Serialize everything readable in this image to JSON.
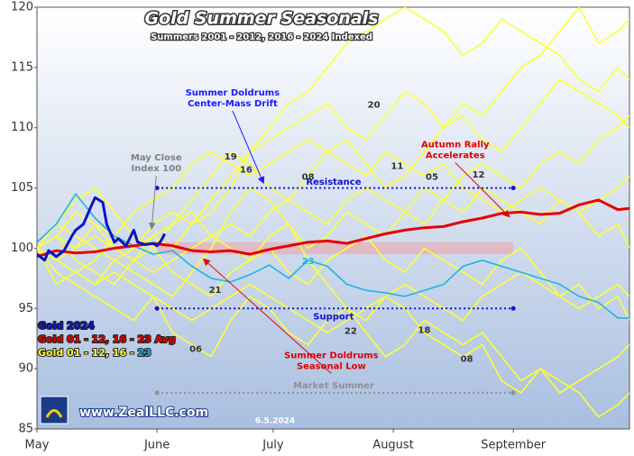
{
  "chart_data": {
    "type": "line",
    "title": "Gold Summer Seasonals",
    "subtitle": "Summers 2001 - 2012, 2016 - 2024 Indexed",
    "xlim": [
      0,
      153
    ],
    "ylim": [
      85,
      120
    ],
    "yticks": [
      85,
      90,
      95,
      100,
      105,
      110,
      115,
      120
    ],
    "xticks": [
      {
        "value": 0,
        "label": "May"
      },
      {
        "value": 31,
        "label": "June"
      },
      {
        "value": 61,
        "label": "July"
      },
      {
        "value": 92,
        "label": "August"
      },
      {
        "value": 123,
        "label": "September"
      }
    ],
    "x": [
      0,
      5,
      10,
      15,
      20,
      25,
      30,
      35,
      40,
      45,
      50,
      55,
      60,
      65,
      70,
      75,
      80,
      85,
      90,
      95,
      100,
      105,
      110,
      115,
      120,
      125,
      130,
      135,
      140,
      145,
      150,
      153
    ],
    "series": [
      {
        "color": "#ffff33",
        "values": [
          100,
          99,
          98,
          97,
          99,
          100,
          101,
          100,
          102,
          103,
          105,
          108,
          110,
          112,
          113,
          115,
          117,
          118,
          119,
          120,
          119,
          118,
          116,
          117,
          119,
          118,
          117,
          116,
          114,
          113,
          115,
          114
        ]
      },
      {
        "color": "#ffff33",
        "values": [
          100,
          102,
          101,
          100,
          99,
          98,
          97,
          96,
          98,
          100,
          103,
          105,
          104,
          102,
          99,
          97,
          95,
          94,
          96,
          95,
          93,
          92,
          91,
          92,
          89,
          88,
          90,
          88,
          89,
          90,
          91,
          92
        ]
      },
      {
        "color": "#ffff33",
        "values": [
          100,
          101,
          103,
          102,
          100,
          99,
          101,
          102,
          104,
          106,
          108,
          107,
          105,
          104,
          106,
          108,
          109,
          107,
          105,
          106,
          108,
          110,
          112,
          111,
          113,
          115,
          116,
          118,
          120,
          117,
          118,
          119
        ]
      },
      {
        "color": "#ffff33",
        "values": [
          100,
          98,
          97,
          96,
          95,
          94,
          96,
          93,
          92,
          91,
          94,
          96,
          95,
          93,
          92,
          94,
          95,
          93,
          91,
          92,
          94,
          93,
          92,
          93,
          91,
          89,
          90,
          89,
          88,
          86,
          87,
          88
        ]
      },
      {
        "color": "#ffff33",
        "values": [
          100,
          101,
          100,
          102,
          101,
          103,
          104,
          105,
          107,
          108,
          107,
          106,
          107,
          108,
          109,
          108,
          107,
          106,
          108,
          107,
          106,
          107,
          105,
          104,
          103,
          104,
          105,
          104,
          103,
          104,
          105,
          106
        ]
      },
      {
        "color": "#ffff33",
        "values": [
          100,
          99,
          100,
          101,
          100,
          99,
          98,
          99,
          100,
          101,
          102,
          101,
          103,
          104,
          103,
          102,
          104,
          105,
          104,
          103,
          105,
          104,
          106,
          107,
          106,
          105,
          107,
          108,
          107,
          109,
          110,
          111
        ]
      },
      {
        "color": "#ffff33",
        "values": [
          100,
          99,
          98,
          97,
          98,
          97,
          96,
          95,
          94,
          95,
          96,
          97,
          96,
          95,
          94,
          93,
          94,
          95,
          96,
          97,
          96,
          95,
          94,
          96,
          97,
          98,
          97,
          96,
          95,
          96,
          97,
          96
        ]
      },
      {
        "color": "#ffff33",
        "values": [
          100,
          102,
          104,
          105,
          103,
          101,
          100,
          102,
          103,
          101,
          100,
          99,
          100,
          98,
          97,
          99,
          100,
          101,
          99,
          98,
          100,
          99,
          98,
          97,
          99,
          100,
          98,
          96,
          97,
          95,
          96,
          94
        ]
      },
      {
        "color": "#ffff33",
        "values": [
          100,
          101,
          99,
          98,
          97,
          99,
          100,
          98,
          97,
          96,
          98,
          99,
          101,
          102,
          100,
          101,
          103,
          102,
          101,
          103,
          102,
          104,
          103,
          105,
          104,
          103,
          102,
          104,
          103,
          101,
          102,
          100
        ]
      },
      {
        "color": "#ffff33",
        "values": [
          100,
          97,
          98,
          99,
          101,
          100,
          102,
          103,
          102,
          104,
          106,
          108,
          109,
          110,
          111,
          112,
          110,
          109,
          111,
          113,
          112,
          110,
          111,
          109,
          108,
          110,
          112,
          114,
          113,
          112,
          111,
          110
        ]
      },
      {
        "color": "#1eb4e6",
        "values": [
          100.5,
          102,
          104.5,
          102.5,
          101,
          100.2,
          99.5,
          99.8,
          98.5,
          97.5,
          97.2,
          97.8,
          98.6,
          97.5,
          99,
          98.5,
          97,
          96.5,
          96.3,
          96,
          96.5,
          97,
          98.5,
          99,
          98.5,
          98,
          97.5,
          97,
          96,
          95.5,
          94.2,
          94.2
        ]
      },
      {
        "color": "#e60000",
        "width": 3,
        "values": [
          99.3,
          99.8,
          99.6,
          99.7,
          100.0,
          100.2,
          100.4,
          100.2,
          99.8,
          99.7,
          99.8,
          99.5,
          99.9,
          100.2,
          100.5,
          100.6,
          100.4,
          100.8,
          101.2,
          101.5,
          101.7,
          101.8,
          102.2,
          102.5,
          102.9,
          103.0,
          102.8,
          102.9,
          103.6,
          104,
          103.2,
          103.3
        ]
      },
      {
        "color": "#0a14c8",
        "width": 3,
        "x": [
          0,
          2,
          3,
          5,
          7,
          9,
          10,
          12,
          14,
          15,
          17,
          18,
          20,
          21,
          23,
          25,
          26,
          28,
          30,
          31,
          32,
          33
        ],
        "values": [
          99.5,
          99,
          99.8,
          99.3,
          99.8,
          101,
          101.5,
          102,
          103.5,
          104.2,
          103.8,
          102,
          100.5,
          100.8,
          100.2,
          101.5,
          100.5,
          100.3,
          100.4,
          100.2,
          100.6,
          101.2
        ]
      }
    ],
    "band": {
      "y": [
        99.5,
        100.5
      ],
      "x": [
        31,
        123
      ],
      "color": "#f0a0a0"
    },
    "reference_lines": [
      {
        "label": "Resistance",
        "y": 105,
        "x": [
          31,
          123
        ],
        "color": "#1010d0",
        "label_at": [
          76.6,
          105.5
        ]
      },
      {
        "label": "Support",
        "y": 95,
        "x": [
          31,
          123
        ],
        "color": "#1010d0",
        "label_at": [
          76.6,
          94.3
        ]
      },
      {
        "label": "Market Summer",
        "y": 88,
        "x": [
          31,
          123
        ],
        "color": "#909090",
        "label_at": [
          76.6,
          88.6
        ]
      }
    ],
    "annotations": [
      {
        "lines": [
          "Summer Doldrums",
          "Center-Mass Drift"
        ],
        "at": [
          50.5,
          112.9
        ],
        "arrow_to": [
          58.5,
          105.4
        ],
        "color": "#1a1aff"
      },
      {
        "lines": [
          "May Close",
          "Index 100"
        ],
        "at": [
          30.8,
          107.5
        ],
        "arrow_to": [
          29.6,
          101.6
        ],
        "color": "#808080"
      },
      {
        "lines": [
          "Autumn Rally",
          "Accelerates"
        ],
        "at": [
          108,
          108.6
        ],
        "arrow_to": [
          122,
          102.6
        ],
        "color": "#e00000"
      },
      {
        "lines": [
          "Summer Doldrums",
          "Seasonal Low"
        ],
        "at": [
          76,
          91.1
        ],
        "arrow_to": [
          43,
          99.1
        ],
        "color": "#e00000"
      }
    ],
    "year_labels": [
      {
        "text": "19",
        "at": [
          50,
          107.6
        ],
        "color": "#333333"
      },
      {
        "text": "16",
        "at": [
          54,
          106.5
        ],
        "color": "#333333"
      },
      {
        "text": "08",
        "at": [
          70,
          105.9
        ],
        "color": "#333333"
      },
      {
        "text": "20",
        "at": [
          87,
          111.9
        ],
        "color": "#333333"
      },
      {
        "text": "11",
        "at": [
          93,
          106.8
        ],
        "color": "#333333"
      },
      {
        "text": "05",
        "at": [
          102,
          105.9
        ],
        "color": "#333333"
      },
      {
        "text": "12",
        "at": [
          114,
          106.1
        ],
        "color": "#333333"
      },
      {
        "text": "21",
        "at": [
          46,
          96.5
        ],
        "color": "#333333"
      },
      {
        "text": "22",
        "at": [
          81,
          93.1
        ],
        "color": "#333333"
      },
      {
        "text": "18",
        "at": [
          100,
          93.2
        ],
        "color": "#333333"
      },
      {
        "text": "06",
        "at": [
          41,
          91.6
        ],
        "color": "#333333"
      },
      {
        "text": "08",
        "at": [
          111,
          90.8
        ],
        "color": "#333333"
      },
      {
        "text": "23",
        "at": [
          70,
          98.9
        ],
        "color": "#1eb4e6"
      }
    ],
    "legend": [
      {
        "text": "Gold 2024",
        "color": "#0a14c8"
      },
      {
        "text": "Gold 01 - 12, 16 - 23 Avg",
        "color": "#e60000"
      },
      {
        "parts": [
          {
            "text": "Gold 01 - 12, 16 - ",
            "color": "#ffff33"
          },
          {
            "text": "23",
            "color": "#1eb4e6"
          }
        ]
      }
    ],
    "website": "www.ZealLLC.com",
    "date": "6.5.2024"
  }
}
